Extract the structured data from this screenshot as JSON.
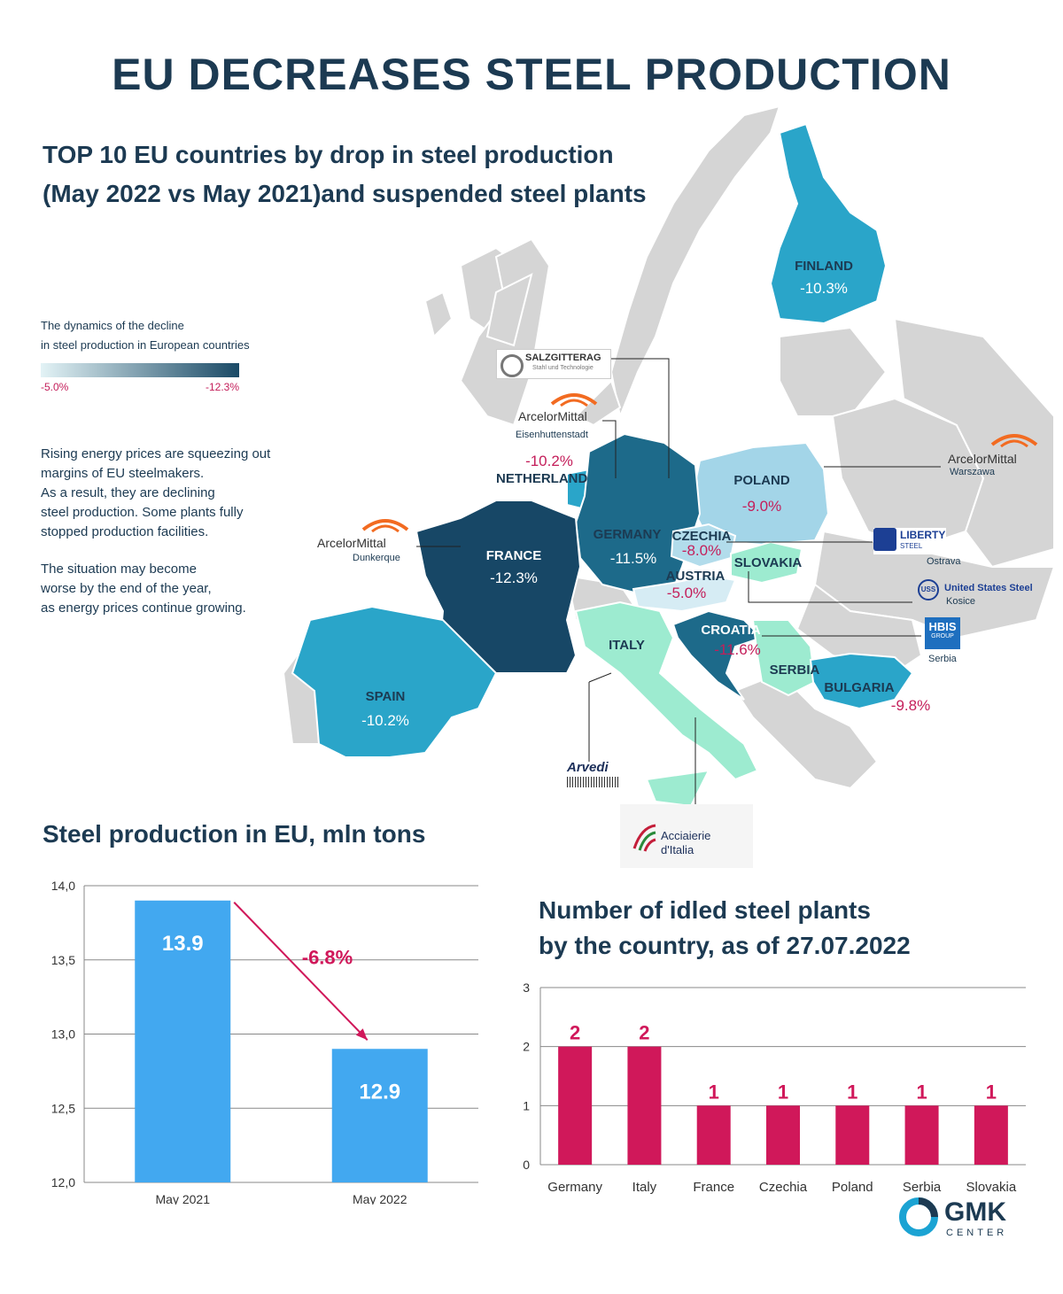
{
  "title": "EU DECREASES STEEL PRODUCTION",
  "subtitle_line1": "TOP 10 EU countries by drop in steel production",
  "subtitle_line2": "(May 2022 vs May 2021)and suspended steel plants",
  "legend": {
    "line1": "The dynamics of the decline",
    "line2": "in steel production in European countries",
    "min": "-5.0%",
    "max": "-12.3%",
    "color_light": "#e3f3f6",
    "color_dark": "#1a4a66"
  },
  "description": {
    "p1": [
      "Rising energy prices are squeezing out",
      "margins of EU steelmakers.",
      "As a result, they are declining",
      "steel production. Some plants fully",
      "stopped production facilities."
    ],
    "p2": [
      "The situation may become",
      "worse by the end of the year,",
      "as energy prices continue growing."
    ]
  },
  "countries": [
    {
      "name": "FINLAND",
      "value": "-10.3%"
    },
    {
      "name": "POLAND",
      "value": "-9.0%"
    },
    {
      "name": "NETHERLAND",
      "value": "-10.2%"
    },
    {
      "name": "GERMANY",
      "value": "-11.5%"
    },
    {
      "name": "CZECHIA",
      "value": "-8.0%"
    },
    {
      "name": "SLOVAKIA",
      "value": ""
    },
    {
      "name": "FRANCE",
      "value": "-12.3%"
    },
    {
      "name": "AUSTRIA",
      "value": "-5.0%"
    },
    {
      "name": "ITALY",
      "value": ""
    },
    {
      "name": "CROATIA",
      "value": "-11.6%"
    },
    {
      "name": "SERBIA",
      "value": ""
    },
    {
      "name": "BULGARIA",
      "value": "-9.8%"
    },
    {
      "name": "SPAIN",
      "value": "-10.2%"
    }
  ],
  "plants": {
    "salzgitter": {
      "name": "SALZGITTERAG",
      "sub": "Stahl und Technologie"
    },
    "am_eisen": {
      "name": "ArcelorMittal",
      "sub": "Eisenhuttenstadt"
    },
    "am_warszawa": {
      "name": "ArcelorMittal",
      "sub": "Warszawa"
    },
    "am_dunkerque": {
      "name": "ArcelorMittal",
      "sub": "Dunkerque"
    },
    "liberty": {
      "name": "LIBERTY",
      "tag": "STEEL",
      "sub": "Ostrava"
    },
    "uss": {
      "name": "United States Steel",
      "sub": "Kosice"
    },
    "hbis": {
      "name": "HBIS",
      "tag": "GROUP",
      "sub": "Serbia"
    },
    "arvedi": {
      "name": "Arvedi"
    },
    "acciaierie": {
      "name": "Acciaierie",
      "name2": "d'Italia"
    }
  },
  "chart_data": [
    {
      "type": "bar",
      "title": "Steel production in EU, mln tons",
      "categories": [
        "May 2021",
        "May 2022"
      ],
      "values": [
        13.9,
        12.9
      ],
      "data_labels": [
        "13.9",
        "12.9"
      ],
      "ylim": [
        12.0,
        14.0
      ],
      "yticks": [
        "12,0",
        "12,5",
        "13,0",
        "13,5",
        "14,0"
      ],
      "annotation": "-6.8%",
      "grid": true,
      "bar_color": "#42a8f0"
    },
    {
      "type": "bar",
      "title_line1": "Number of idled steel plants",
      "title_line2": "by the country, as of 27.07.2022",
      "categories": [
        "Germany",
        "Italy",
        "France",
        "Czechia",
        "Poland",
        "Serbia",
        "Slovakia"
      ],
      "values": [
        2,
        2,
        1,
        1,
        1,
        1,
        1
      ],
      "ylim": [
        0,
        3
      ],
      "yticks": [
        "0",
        "1",
        "2",
        "3"
      ],
      "grid": true,
      "bar_color": "#d0185a"
    }
  ],
  "footer": {
    "brand": "GMK",
    "brand_sub": "CENTER"
  }
}
